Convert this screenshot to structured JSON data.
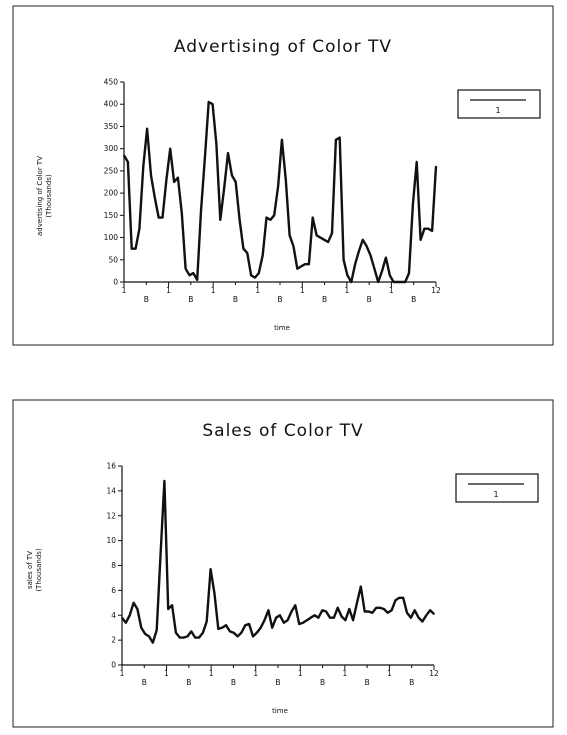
{
  "chart_data": [
    {
      "type": "line",
      "title": "Advertising of Color TV",
      "xlabel": "time",
      "ylabel": "advertising of Color TV",
      "ylabel_unit": "(Thousands)",
      "ylim": [
        0,
        450
      ],
      "yticks": [
        "0",
        "50",
        "100",
        "150",
        "200",
        "250",
        "300",
        "350",
        "400",
        "450"
      ],
      "xticks_major": [
        "1",
        "1",
        "1",
        "1",
        "1",
        "1",
        "1",
        "12"
      ],
      "xticks_minor": [
        "B",
        "B",
        "B",
        "B",
        "B",
        "B",
        "B"
      ],
      "legend": [
        "1"
      ],
      "legend_placement": "right",
      "grid": false,
      "series": [
        {
          "values": [
            285,
            270,
            75,
            75,
            120,
            260,
            345,
            240,
            190,
            145,
            145,
            230,
            300,
            225,
            235,
            155,
            30,
            15,
            20,
            5,
            160,
            280,
            405,
            400,
            310,
            140,
            210,
            290,
            240,
            225,
            140,
            75,
            65,
            15,
            10,
            20,
            60,
            145,
            140,
            150,
            215,
            320,
            230,
            105,
            80,
            30,
            35,
            40,
            40,
            145,
            105,
            100,
            95,
            90,
            110,
            320,
            325,
            50,
            15,
            0,
            40,
            70,
            95,
            80,
            60,
            30,
            0,
            25,
            55,
            15,
            0,
            0,
            0,
            0,
            20,
            175,
            270,
            95,
            120,
            120,
            115,
            260
          ]
        }
      ]
    },
    {
      "type": "line",
      "title": "Sales of Color TV",
      "xlabel": "time",
      "ylabel": "sales of TV",
      "ylabel_unit": "(Thousands)",
      "ylim": [
        0,
        16
      ],
      "yticks": [
        "0",
        "2",
        "4",
        "6",
        "8",
        "10",
        "12",
        "14",
        "16"
      ],
      "xticks_major": [
        "1",
        "1",
        "1",
        "1",
        "1",
        "1",
        "1",
        "12"
      ],
      "xticks_minor": [
        "B",
        "B",
        "B",
        "B",
        "B",
        "B",
        "B"
      ],
      "legend": [
        "1"
      ],
      "legend_placement": "right",
      "grid": false,
      "series": [
        {
          "values": [
            3.8,
            3.4,
            4.0,
            5.0,
            4.5,
            3.0,
            2.5,
            2.3,
            1.8,
            2.8,
            8.8,
            14.8,
            4.5,
            4.8,
            2.6,
            2.2,
            2.2,
            2.3,
            2.7,
            2.2,
            2.2,
            2.6,
            3.5,
            7.7,
            5.8,
            2.9,
            3.0,
            3.2,
            2.7,
            2.6,
            2.3,
            2.6,
            3.2,
            3.3,
            2.3,
            2.6,
            3.0,
            3.6,
            4.4,
            3.0,
            3.8,
            4.0,
            3.4,
            3.6,
            4.3,
            4.8,
            3.3,
            3.4,
            3.6,
            3.8,
            4.0,
            3.8,
            4.4,
            4.3,
            3.8,
            3.8,
            4.6,
            3.9,
            3.6,
            4.5,
            3.6,
            5.0,
            6.3,
            4.3,
            4.3,
            4.2,
            4.6,
            4.6,
            4.5,
            4.2,
            4.4,
            5.2,
            5.4,
            5.4,
            4.2,
            3.8,
            4.4,
            3.8,
            3.5,
            4.0,
            4.4,
            4.1
          ]
        }
      ]
    }
  ]
}
